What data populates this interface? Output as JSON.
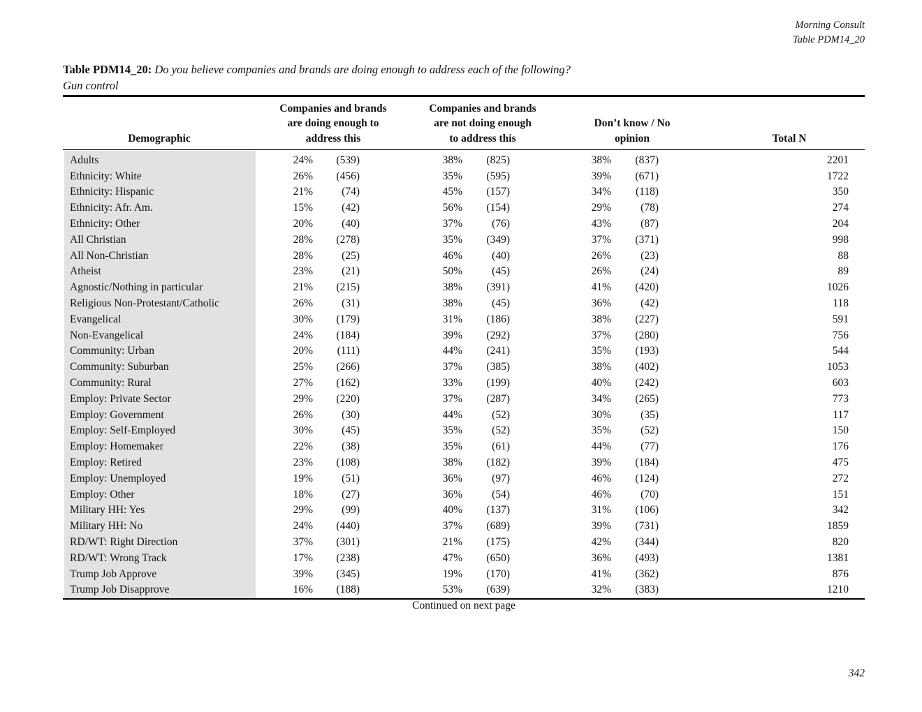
{
  "page": {
    "header_right": {
      "line1": "Morning Consult",
      "line2": "Table PDM14_20"
    },
    "title": {
      "label": "Table PDM14_20:",
      "question": "Do you believe companies and brands are doing enough to address each of the following?",
      "subtitle": "Gun control"
    },
    "footer_note": "Continued on next page",
    "page_number": "342"
  },
  "table": {
    "columns": {
      "demographic": "Demographic",
      "doing_enough_lines": [
        "Companies and brands",
        "are doing enough to",
        "address this"
      ],
      "not_doing_enough_lines": [
        "Companies and brands",
        "are not doing enough",
        "to address this"
      ],
      "dont_know_lines": [
        "Don’t know / No",
        "opinion"
      ],
      "total_n": "Total N"
    },
    "rows": [
      {
        "demographic": "Adults",
        "doing_pct": "24%",
        "doing_n": "(539)",
        "not_pct": "38%",
        "not_n": "(825)",
        "dk_pct": "38%",
        "dk_n": "(837)",
        "total": "2201"
      },
      {
        "demographic": "Ethnicity: White",
        "doing_pct": "26%",
        "doing_n": "(456)",
        "not_pct": "35%",
        "not_n": "(595)",
        "dk_pct": "39%",
        "dk_n": "(671)",
        "total": "1722"
      },
      {
        "demographic": "Ethnicity: Hispanic",
        "doing_pct": "21%",
        "doing_n": "(74)",
        "not_pct": "45%",
        "not_n": "(157)",
        "dk_pct": "34%",
        "dk_n": "(118)",
        "total": "350"
      },
      {
        "demographic": "Ethnicity: Afr. Am.",
        "doing_pct": "15%",
        "doing_n": "(42)",
        "not_pct": "56%",
        "not_n": "(154)",
        "dk_pct": "29%",
        "dk_n": "(78)",
        "total": "274"
      },
      {
        "demographic": "Ethnicity: Other",
        "doing_pct": "20%",
        "doing_n": "(40)",
        "not_pct": "37%",
        "not_n": "(76)",
        "dk_pct": "43%",
        "dk_n": "(87)",
        "total": "204"
      },
      {
        "demographic": "All Christian",
        "doing_pct": "28%",
        "doing_n": "(278)",
        "not_pct": "35%",
        "not_n": "(349)",
        "dk_pct": "37%",
        "dk_n": "(371)",
        "total": "998"
      },
      {
        "demographic": "All Non-Christian",
        "doing_pct": "28%",
        "doing_n": "(25)",
        "not_pct": "46%",
        "not_n": "(40)",
        "dk_pct": "26%",
        "dk_n": "(23)",
        "total": "88"
      },
      {
        "demographic": "Atheist",
        "doing_pct": "23%",
        "doing_n": "(21)",
        "not_pct": "50%",
        "not_n": "(45)",
        "dk_pct": "26%",
        "dk_n": "(24)",
        "total": "89"
      },
      {
        "demographic": "Agnostic/Nothing in particular",
        "doing_pct": "21%",
        "doing_n": "(215)",
        "not_pct": "38%",
        "not_n": "(391)",
        "dk_pct": "41%",
        "dk_n": "(420)",
        "total": "1026"
      },
      {
        "demographic": "Religious Non-Protestant/Catholic",
        "doing_pct": "26%",
        "doing_n": "(31)",
        "not_pct": "38%",
        "not_n": "(45)",
        "dk_pct": "36%",
        "dk_n": "(42)",
        "total": "118"
      },
      {
        "demographic": "Evangelical",
        "doing_pct": "30%",
        "doing_n": "(179)",
        "not_pct": "31%",
        "not_n": "(186)",
        "dk_pct": "38%",
        "dk_n": "(227)",
        "total": "591"
      },
      {
        "demographic": "Non-Evangelical",
        "doing_pct": "24%",
        "doing_n": "(184)",
        "not_pct": "39%",
        "not_n": "(292)",
        "dk_pct": "37%",
        "dk_n": "(280)",
        "total": "756"
      },
      {
        "demographic": "Community: Urban",
        "doing_pct": "20%",
        "doing_n": "(111)",
        "not_pct": "44%",
        "not_n": "(241)",
        "dk_pct": "35%",
        "dk_n": "(193)",
        "total": "544"
      },
      {
        "demographic": "Community: Suburban",
        "doing_pct": "25%",
        "doing_n": "(266)",
        "not_pct": "37%",
        "not_n": "(385)",
        "dk_pct": "38%",
        "dk_n": "(402)",
        "total": "1053"
      },
      {
        "demographic": "Community: Rural",
        "doing_pct": "27%",
        "doing_n": "(162)",
        "not_pct": "33%",
        "not_n": "(199)",
        "dk_pct": "40%",
        "dk_n": "(242)",
        "total": "603"
      },
      {
        "demographic": "Employ: Private Sector",
        "doing_pct": "29%",
        "doing_n": "(220)",
        "not_pct": "37%",
        "not_n": "(287)",
        "dk_pct": "34%",
        "dk_n": "(265)",
        "total": "773"
      },
      {
        "demographic": "Employ: Government",
        "doing_pct": "26%",
        "doing_n": "(30)",
        "not_pct": "44%",
        "not_n": "(52)",
        "dk_pct": "30%",
        "dk_n": "(35)",
        "total": "117"
      },
      {
        "demographic": "Employ: Self-Employed",
        "doing_pct": "30%",
        "doing_n": "(45)",
        "not_pct": "35%",
        "not_n": "(52)",
        "dk_pct": "35%",
        "dk_n": "(52)",
        "total": "150"
      },
      {
        "demographic": "Employ: Homemaker",
        "doing_pct": "22%",
        "doing_n": "(38)",
        "not_pct": "35%",
        "not_n": "(61)",
        "dk_pct": "44%",
        "dk_n": "(77)",
        "total": "176"
      },
      {
        "demographic": "Employ: Retired",
        "doing_pct": "23%",
        "doing_n": "(108)",
        "not_pct": "38%",
        "not_n": "(182)",
        "dk_pct": "39%",
        "dk_n": "(184)",
        "total": "475"
      },
      {
        "demographic": "Employ: Unemployed",
        "doing_pct": "19%",
        "doing_n": "(51)",
        "not_pct": "36%",
        "not_n": "(97)",
        "dk_pct": "46%",
        "dk_n": "(124)",
        "total": "272"
      },
      {
        "demographic": "Employ: Other",
        "doing_pct": "18%",
        "doing_n": "(27)",
        "not_pct": "36%",
        "not_n": "(54)",
        "dk_pct": "46%",
        "dk_n": "(70)",
        "total": "151"
      },
      {
        "demographic": "Military HH: Yes",
        "doing_pct": "29%",
        "doing_n": "(99)",
        "not_pct": "40%",
        "not_n": "(137)",
        "dk_pct": "31%",
        "dk_n": "(106)",
        "total": "342"
      },
      {
        "demographic": "Military HH: No",
        "doing_pct": "24%",
        "doing_n": "(440)",
        "not_pct": "37%",
        "not_n": "(689)",
        "dk_pct": "39%",
        "dk_n": "(731)",
        "total": "1859"
      },
      {
        "demographic": "RD/WT: Right Direction",
        "doing_pct": "37%",
        "doing_n": "(301)",
        "not_pct": "21%",
        "not_n": "(175)",
        "dk_pct": "42%",
        "dk_n": "(344)",
        "total": "820"
      },
      {
        "demographic": "RD/WT: Wrong Track",
        "doing_pct": "17%",
        "doing_n": "(238)",
        "not_pct": "47%",
        "not_n": "(650)",
        "dk_pct": "36%",
        "dk_n": "(493)",
        "total": "1381"
      },
      {
        "demographic": "Trump Job Approve",
        "doing_pct": "39%",
        "doing_n": "(345)",
        "not_pct": "19%",
        "not_n": "(170)",
        "dk_pct": "41%",
        "dk_n": "(362)",
        "total": "876"
      },
      {
        "demographic": "Trump Job Disapprove",
        "doing_pct": "16%",
        "doing_n": "(188)",
        "not_pct": "53%",
        "not_n": "(639)",
        "dk_pct": "32%",
        "dk_n": "(383)",
        "total": "1210"
      }
    ]
  }
}
